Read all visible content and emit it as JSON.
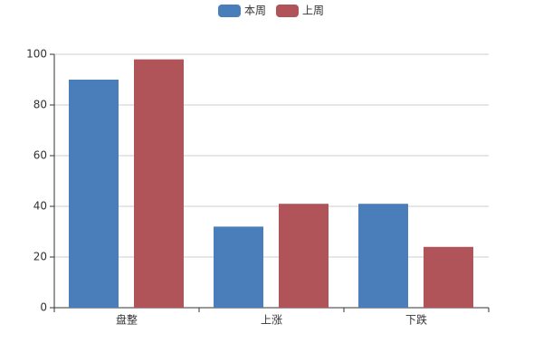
{
  "chart_data": {
    "type": "bar",
    "categories": [
      "盘整",
      "上涨",
      "下跌"
    ],
    "series": [
      {
        "name": "本周",
        "color": "#4a7ebb",
        "values": [
          90,
          32,
          41
        ]
      },
      {
        "name": "上周",
        "color": "#b0545a",
        "values": [
          98,
          41,
          24
        ]
      }
    ],
    "ylim": [
      0,
      100
    ],
    "yticks": [
      0,
      20,
      40,
      60,
      80,
      100
    ],
    "grid": true,
    "legend": "top"
  }
}
